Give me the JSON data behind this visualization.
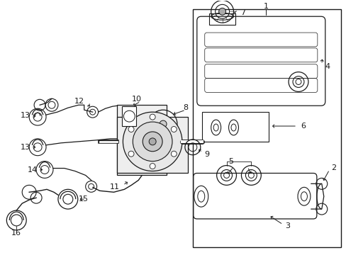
{
  "bg_color": "#ffffff",
  "lc": "#1a1a1a",
  "fig_width": 4.89,
  "fig_height": 3.6,
  "dpi": 100
}
